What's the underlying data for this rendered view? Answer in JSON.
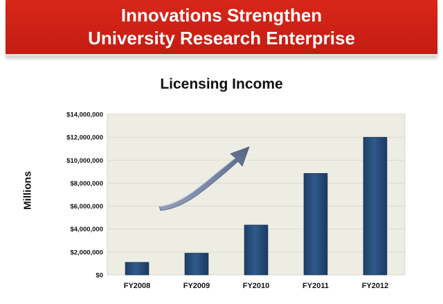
{
  "header": {
    "line1": "Innovations Strengthen",
    "line2": "University Research Enterprise"
  },
  "colors": {
    "banner": "#cc2116",
    "plot_background": "#eeede4",
    "bar": "#27507f",
    "arrow": "#7d8aa6"
  },
  "decoration": {
    "arrow_icon": "upward-trend-arrow"
  },
  "chart_data": {
    "type": "bar",
    "title": "Licensing Income",
    "xlabel": "",
    "ylabel": "Millions",
    "categories": [
      "FY2008",
      "FY2009",
      "FY2010",
      "FY2011",
      "FY2012"
    ],
    "values": [
      1100000,
      1900000,
      4350000,
      8850000,
      12000000
    ],
    "ylim": [
      0,
      14000000
    ],
    "yticks": [
      0,
      2000000,
      4000000,
      6000000,
      8000000,
      10000000,
      12000000,
      14000000
    ],
    "ytick_labels": [
      "$0",
      "$2,000,000",
      "$4,000,000",
      "$6,000,000",
      "$8,000,000",
      "$10,000,000",
      "$12,000,000",
      "$14,000,000"
    ],
    "grid": true,
    "legend": "none"
  }
}
